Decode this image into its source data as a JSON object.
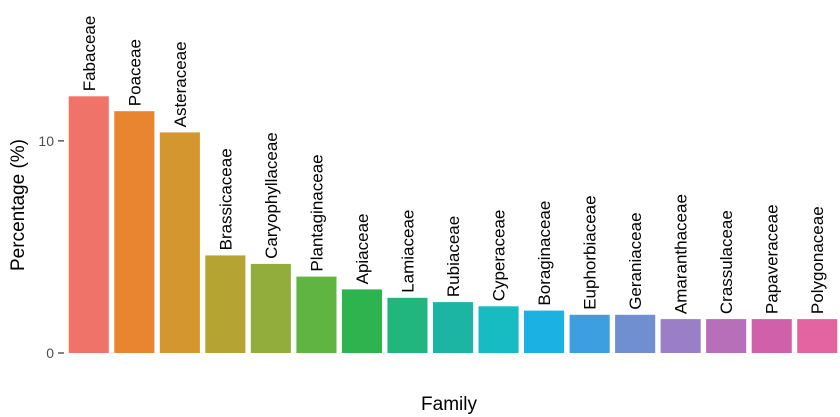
{
  "chart_data": {
    "type": "bar",
    "xlabel": "Family",
    "ylabel": "Percentage (%)",
    "ylim": [
      0,
      16.5
    ],
    "yticks": [
      0,
      10
    ],
    "grid": false,
    "categories": [
      "Fabaceae",
      "Poaceae",
      "Asteraceae",
      "Brassicaceae",
      "Caryophyllaceae",
      "Plantaginaceae",
      "Apiaceae",
      "Lamiaceae",
      "Rubiaceae",
      "Cyperaceae",
      "Boraginaceae",
      "Euphorbiaceae",
      "Geraniaceae",
      "Amaranthaceae",
      "Crassulaceae",
      "Papaveraceae",
      "Polygonaceae"
    ],
    "values": [
      12.1,
      11.4,
      10.4,
      4.6,
      4.2,
      3.6,
      3.0,
      2.6,
      2.4,
      2.2,
      2.0,
      1.8,
      1.8,
      1.6,
      1.6,
      1.6,
      1.6
    ],
    "colors": [
      "#f0736a",
      "#e8852e",
      "#d4962e",
      "#b6a432",
      "#92ad3c",
      "#5fb442",
      "#2db44f",
      "#21b67d",
      "#1cb5a4",
      "#17bcc2",
      "#1bb1e3",
      "#3d9fdf",
      "#6f8fd0",
      "#9a7fc7",
      "#b86fba",
      "#d160aa",
      "#e464a2"
    ]
  }
}
